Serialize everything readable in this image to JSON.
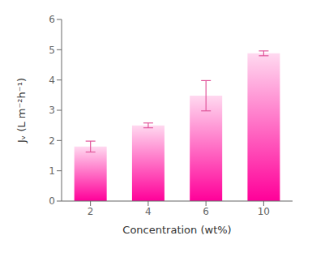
{
  "chart_data": {
    "type": "bar",
    "categories": [
      "2",
      "4",
      "6",
      "10"
    ],
    "values": [
      1.8,
      2.5,
      3.48,
      4.88
    ],
    "errors": [
      0.18,
      0.08,
      0.5,
      0.08
    ],
    "xlabel": "Concentration (wt%)",
    "ylabel": "Jᵥ (L m⁻²h⁻¹)",
    "ylim": [
      0,
      6
    ],
    "yticks": [
      0,
      1,
      2,
      3,
      4,
      5,
      6
    ],
    "color": "#FF0099",
    "grid": false
  }
}
